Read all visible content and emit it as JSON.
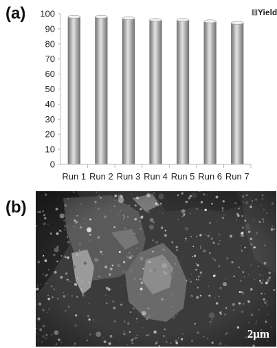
{
  "panels": {
    "a": "(a)",
    "b": "(b)"
  },
  "chart_data": {
    "type": "bar",
    "title": "",
    "xlabel": "",
    "ylabel": "",
    "categories": [
      "Run 1",
      "Run 2",
      "Run 3",
      "Run 4",
      "Run 5",
      "Run 6",
      "Run 7"
    ],
    "series": [
      {
        "name": "Yield",
        "values": [
          98,
          98,
          97,
          96,
          96,
          95,
          94
        ]
      }
    ],
    "ylim": [
      0,
      100
    ],
    "yticks": [
      0,
      10,
      20,
      30,
      40,
      50,
      60,
      70,
      80,
      90,
      100
    ],
    "grid": false,
    "legend": "top-right",
    "colors": {
      "bar_dark": "#6e6e6e",
      "bar_light": "#e4e4e4",
      "axis": "#b8b8b8"
    }
  },
  "micrograph": {
    "scale_bar": "2μm"
  }
}
